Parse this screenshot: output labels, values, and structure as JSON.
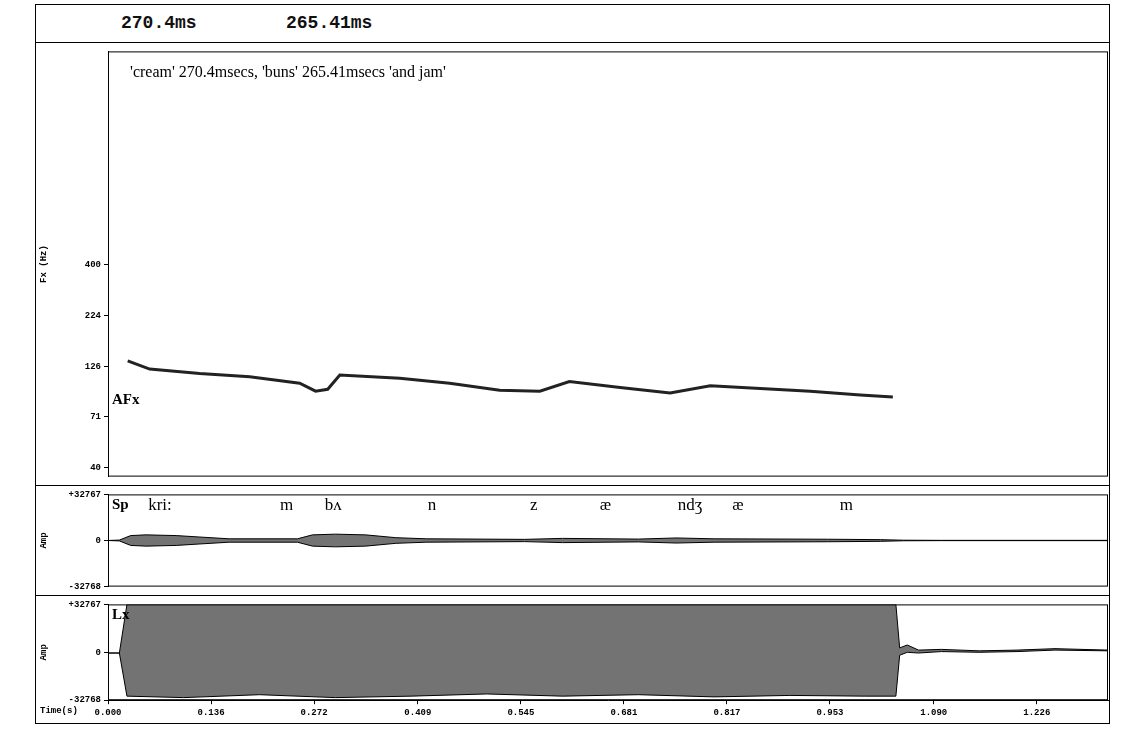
{
  "header": {
    "texts": [
      "270.4ms",
      "265.41ms"
    ]
  },
  "chart_data": [
    {
      "type": "line",
      "panel_label": "AFx",
      "y_label": "Fx (Hz)",
      "annotation": "'cream' 270.4msecs, 'buns' 265.41msecs 'and jam'",
      "log": "y",
      "grid": false,
      "tick_labels": "y",
      "color": "#222222",
      "xlim": [
        0,
        1.32
      ],
      "ylim": [
        36,
        4500
      ],
      "yticks": [
        40,
        71,
        126,
        224,
        400
      ],
      "x": [
        0.026,
        0.055,
        0.121,
        0.187,
        0.253,
        0.274,
        0.29,
        0.306,
        0.385,
        0.451,
        0.517,
        0.57,
        0.609,
        0.676,
        0.742,
        0.795,
        0.861,
        0.927,
        0.993,
        1.036
      ],
      "values": [
        134,
        122,
        116,
        112,
        104,
        95,
        97,
        114,
        110,
        104,
        96,
        95,
        106,
        99,
        93,
        101,
        98,
        95,
        91,
        89
      ]
    },
    {
      "type": "area",
      "panel_label": "Sp",
      "y_label": "Amp",
      "grid": false,
      "tick_labels": "y",
      "color": "#000000",
      "xlim": [
        0,
        1.32
      ],
      "ylim": [
        -32768,
        32767
      ],
      "yticks": [
        {
          "value": 32767,
          "label": "+32767"
        },
        0,
        -32768
      ],
      "annotations": [
        {
          "x": 0.053,
          "text": "kri:"
        },
        {
          "x": 0.227,
          "text": "m"
        },
        {
          "x": 0.286,
          "text": "bʌ"
        },
        {
          "x": 0.422,
          "text": "n"
        },
        {
          "x": 0.557,
          "text": "z"
        },
        {
          "x": 0.649,
          "text": "æ"
        },
        {
          "x": 0.752,
          "text": "ndʒ"
        },
        {
          "x": 0.824,
          "text": "æ"
        },
        {
          "x": 0.966,
          "text": "m"
        }
      ],
      "envelope": {
        "x": [
          0,
          0.015,
          0.03,
          0.05,
          0.09,
          0.12,
          0.16,
          0.25,
          0.27,
          0.3,
          0.34,
          0.38,
          0.42,
          0.55,
          0.6,
          0.7,
          0.75,
          0.8,
          0.95,
          1.02,
          1.05,
          1.1,
          1.32
        ],
        "upper": [
          0,
          300,
          3500,
          4000,
          3500,
          2500,
          1200,
          1200,
          4000,
          4500,
          4000,
          2000,
          1200,
          800,
          1500,
          1000,
          1800,
          1200,
          900,
          600,
          200,
          100,
          100
        ],
        "lower": [
          0,
          -300,
          -3500,
          -4000,
          -3500,
          -2500,
          -1200,
          -1200,
          -4000,
          -4500,
          -4000,
          -2000,
          -1200,
          -800,
          -1500,
          -1000,
          -1800,
          -1200,
          -900,
          -600,
          -200,
          -100,
          -100
        ]
      }
    },
    {
      "type": "area",
      "panel_label": "Lx",
      "y_label": "Amp",
      "x_label": "Time(s)",
      "grid": false,
      "color": "#000000",
      "xlim": [
        0,
        1.32
      ],
      "ylim": [
        -32768,
        32767
      ],
      "yticks": [
        {
          "value": 32767,
          "label": "+32767"
        },
        0,
        -32768
      ],
      "xticks": [
        {
          "value": 0,
          "label": "0.000"
        },
        0.136,
        0.272,
        0.409,
        0.545,
        0.681,
        0.817,
        0.953,
        {
          "value": 1.09,
          "label": "1.090"
        },
        1.226
      ],
      "envelope": {
        "x": [
          0,
          0.015,
          0.025,
          0.1,
          0.2,
          0.3,
          0.4,
          0.5,
          0.6,
          0.7,
          0.8,
          0.9,
          1.0,
          1.04,
          1.045,
          1.055,
          1.07,
          1.1,
          1.15,
          1.2,
          1.25,
          1.32
        ],
        "upper": [
          -500,
          -500,
          32767,
          32767,
          32767,
          32767,
          32767,
          32767,
          32767,
          32767,
          32767,
          32767,
          32767,
          32767,
          3000,
          5000,
          1500,
          2000,
          1000,
          1500,
          2500,
          1500
        ],
        "lower": [
          -500,
          -500,
          -30000,
          -31000,
          -29000,
          -31000,
          -30000,
          -28500,
          -30000,
          -29000,
          -30500,
          -29500,
          -30000,
          -30000,
          -2000,
          0,
          -500,
          500,
          0,
          500,
          1500,
          1000
        ]
      }
    }
  ]
}
